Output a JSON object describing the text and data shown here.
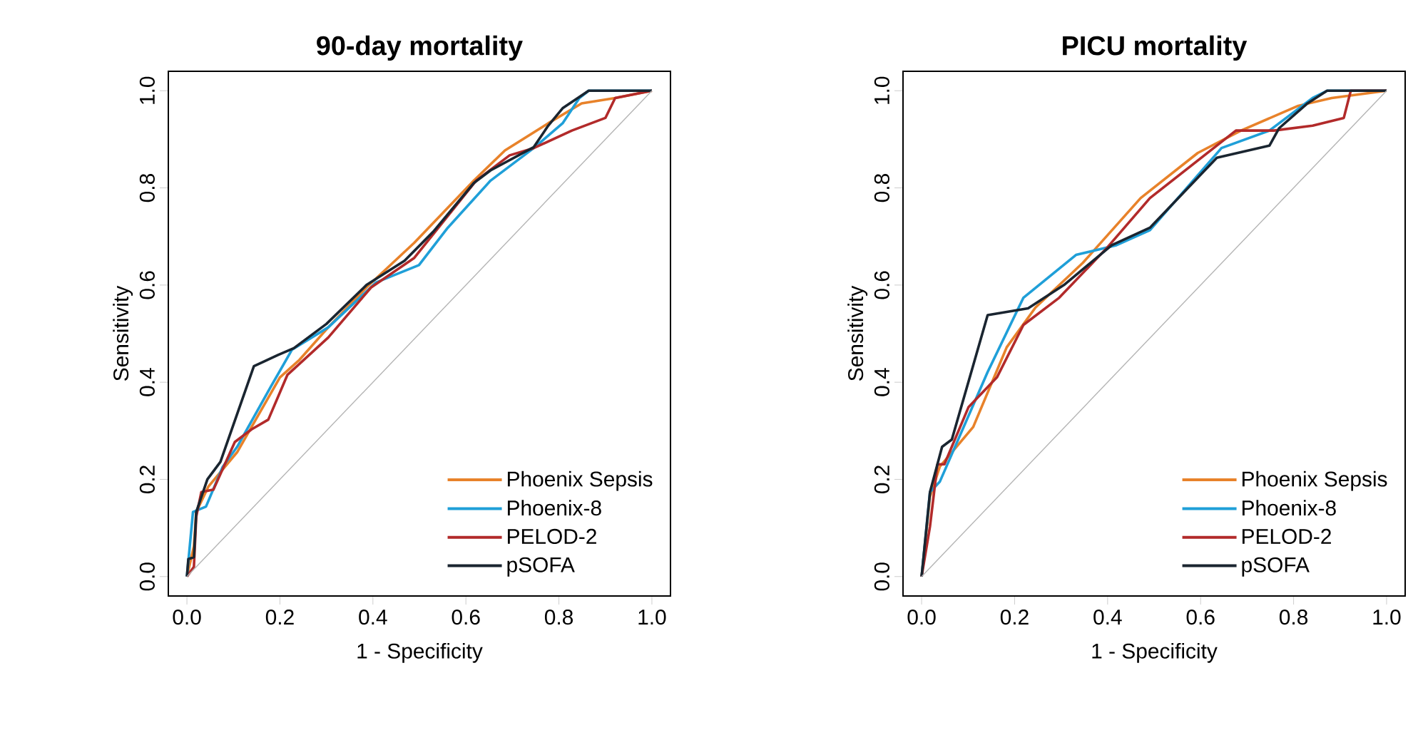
{
  "chart_data": [
    {
      "type": "line",
      "title": "**90-day mortality**",
      "xlabel": "1 - Specificity",
      "ylabel": "Sensitivity",
      "xlim": [
        -0.04,
        1.04
      ],
      "ylim": [
        -0.04,
        1.04
      ],
      "xticks": [
        {
          "value": 0,
          "label": "0.0"
        },
        {
          "value": 0.2,
          "label": "0.2"
        },
        {
          "value": 0.4,
          "label": "0.4"
        },
        {
          "value": 0.6,
          "label": "0.6"
        },
        {
          "value": 0.8,
          "label": "0.8"
        },
        {
          "value": 1,
          "label": "1.0"
        }
      ],
      "yticks": [
        {
          "value": 0,
          "label": "0.0"
        },
        {
          "value": 0.2,
          "label": "0.2"
        },
        {
          "value": 0.4,
          "label": "0.4"
        },
        {
          "value": 0.6,
          "label": "0.6"
        },
        {
          "value": 0.8,
          "label": "0.8"
        },
        {
          "value": 1,
          "label": "1.0"
        }
      ],
      "legend": "bottom right",
      "grid": false,
      "line_style": "solid",
      "series": [
        {
          "name": "Phoenix Sepsis",
          "color": "#e8822a",
          "x": [
            0,
            0.015,
            0.02,
            0.046,
            0.108,
            0.139,
            0.2,
            0.242,
            0.304,
            0.386,
            0.489,
            0.617,
            0.684,
            0.777,
            0.849,
            0.921,
            1
          ],
          "values": [
            0,
            0.062,
            0.133,
            0.185,
            0.256,
            0.308,
            0.41,
            0.446,
            0.513,
            0.595,
            0.687,
            0.815,
            0.877,
            0.933,
            0.974,
            0.985,
            1
          ]
        },
        {
          "name": "Phoenix-8",
          "color": "#1f9fd8",
          "x": [
            0,
            0.013,
            0.041,
            0.077,
            0.108,
            0.18,
            0.226,
            0.304,
            0.406,
            0.499,
            0.561,
            0.653,
            0.746,
            0.808,
            0.844,
            0.864,
            1
          ],
          "values": [
            0,
            0.133,
            0.144,
            0.226,
            0.267,
            0.39,
            0.467,
            0.513,
            0.605,
            0.641,
            0.718,
            0.815,
            0.882,
            0.933,
            0.985,
            1,
            1
          ]
        },
        {
          "name": "PELOD-2",
          "color": "#b22a2a",
          "x": [
            0,
            0.015,
            0.02,
            0.031,
            0.057,
            0.103,
            0.139,
            0.175,
            0.216,
            0.304,
            0.396,
            0.489,
            0.622,
            0.694,
            0.746,
            0.828,
            0.9,
            0.921,
            1
          ],
          "values": [
            0,
            0.02,
            0.123,
            0.174,
            0.179,
            0.277,
            0.303,
            0.323,
            0.415,
            0.492,
            0.595,
            0.656,
            0.815,
            0.867,
            0.882,
            0.918,
            0.944,
            0.985,
            1
          ]
        },
        {
          "name": "pSOFA",
          "color": "#1a2530",
          "x": [
            0,
            0.003,
            0.015,
            0.02,
            0.044,
            0.072,
            0.144,
            0.196,
            0.23,
            0.3,
            0.386,
            0.468,
            0.53,
            0.617,
            0.653,
            0.746,
            0.777,
            0.808,
            0.864,
            1
          ],
          "values": [
            0,
            0.036,
            0.04,
            0.133,
            0.2,
            0.236,
            0.433,
            0.456,
            0.47,
            0.52,
            0.6,
            0.65,
            0.71,
            0.81,
            0.836,
            0.884,
            0.928,
            0.964,
            1,
            1
          ]
        },
        {
          "color": "#b4b4b4",
          "x": [
            0,
            1
          ],
          "values": [
            0,
            1
          ]
        }
      ]
    },
    {
      "type": "line",
      "title": "**PICU mortality**",
      "xlabel": "1 - Specificity",
      "ylabel": "Sensitivity",
      "xlim": [
        -0.04,
        1.04
      ],
      "ylim": [
        -0.04,
        1.04
      ],
      "xticks": [
        {
          "value": 0,
          "label": "0.0"
        },
        {
          "value": 0.2,
          "label": "0.2"
        },
        {
          "value": 0.4,
          "label": "0.4"
        },
        {
          "value": 0.6,
          "label": "0.6"
        },
        {
          "value": 0.8,
          "label": "0.8"
        },
        {
          "value": 1,
          "label": "1.0"
        }
      ],
      "yticks": [
        {
          "value": 0,
          "label": "0.0"
        },
        {
          "value": 0.2,
          "label": "0.2"
        },
        {
          "value": 0.4,
          "label": "0.4"
        },
        {
          "value": 0.6,
          "label": "0.6"
        },
        {
          "value": 0.8,
          "label": "0.8"
        },
        {
          "value": 1,
          "label": "1.0"
        }
      ],
      "legend": "bottom right",
      "grid": false,
      "line_style": "solid",
      "series": [
        {
          "name": "Phoenix Sepsis",
          "color": "#e8822a",
          "x": [
            0,
            0.018,
            0.039,
            0.111,
            0.183,
            0.245,
            0.347,
            0.471,
            0.594,
            0.687,
            0.81,
            0.882,
            1
          ],
          "values": [
            0,
            0.164,
            0.226,
            0.308,
            0.472,
            0.554,
            0.646,
            0.779,
            0.872,
            0.918,
            0.969,
            0.985,
            1
          ]
        },
        {
          "name": "Phoenix-8",
          "color": "#1f9fd8",
          "x": [
            0,
            0.018,
            0.039,
            0.142,
            0.219,
            0.332,
            0.419,
            0.491,
            0.645,
            0.748,
            0.841,
            0.872,
            1
          ],
          "values": [
            0,
            0.174,
            0.195,
            0.421,
            0.574,
            0.662,
            0.682,
            0.713,
            0.882,
            0.918,
            0.985,
            1,
            1
          ]
        },
        {
          "name": "PELOD-2",
          "color": "#b22a2a",
          "x": [
            0,
            0.018,
            0.034,
            0.049,
            0.101,
            0.162,
            0.219,
            0.296,
            0.399,
            0.491,
            0.676,
            0.758,
            0.841,
            0.908,
            0.923,
            1
          ],
          "values": [
            0,
            0.103,
            0.231,
            0.231,
            0.349,
            0.41,
            0.518,
            0.574,
            0.677,
            0.779,
            0.918,
            0.918,
            0.928,
            0.944,
            1,
            1
          ]
        },
        {
          "name": "pSOFA",
          "color": "#1a2530",
          "x": [
            0,
            0.018,
            0.044,
            0.065,
            0.142,
            0.229,
            0.306,
            0.409,
            0.491,
            0.635,
            0.748,
            0.769,
            0.83,
            0.872,
            1
          ],
          "values": [
            0,
            0.174,
            0.267,
            0.282,
            0.538,
            0.552,
            0.6,
            0.682,
            0.718,
            0.862,
            0.887,
            0.923,
            0.974,
            1,
            1
          ]
        },
        {
          "color": "#b4b4b4",
          "x": [
            0,
            1
          ],
          "values": [
            0,
            1
          ]
        }
      ]
    }
  ]
}
